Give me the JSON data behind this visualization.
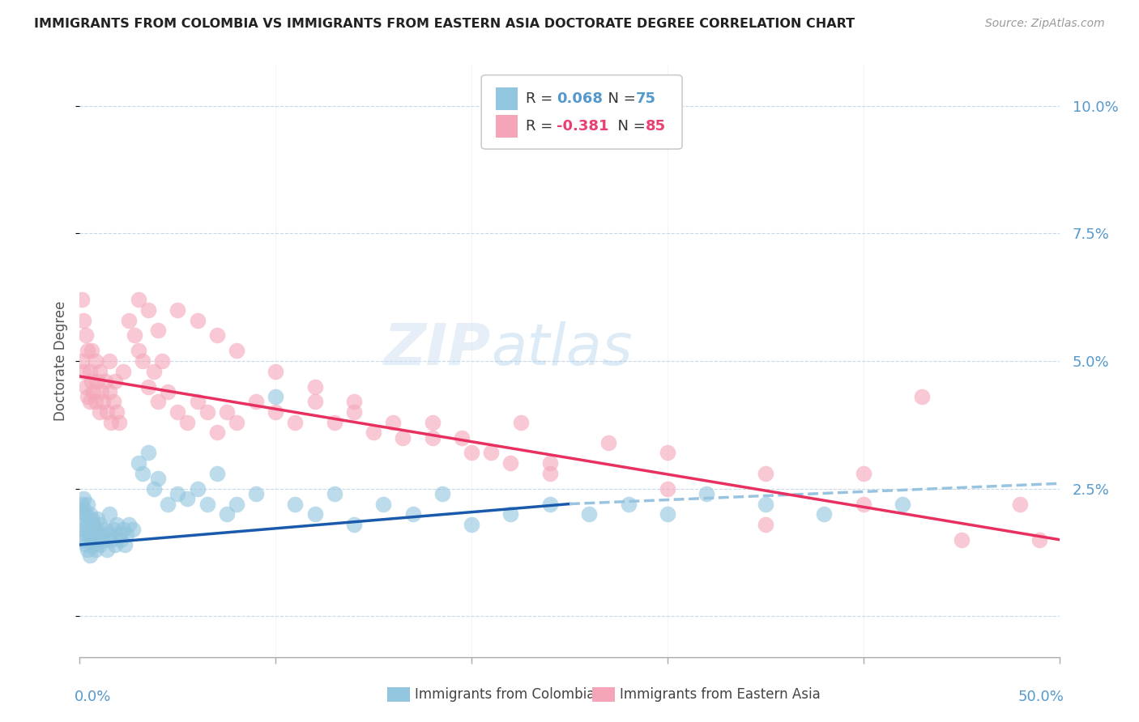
{
  "title": "IMMIGRANTS FROM COLOMBIA VS IMMIGRANTS FROM EASTERN ASIA DOCTORATE DEGREE CORRELATION CHART",
  "source": "Source: ZipAtlas.com",
  "ylabel": "Doctorate Degree",
  "yticks": [
    0.0,
    0.025,
    0.05,
    0.075,
    0.1
  ],
  "ytick_labels": [
    "",
    "2.5%",
    "5.0%",
    "7.5%",
    "10.0%"
  ],
  "xlim": [
    0.0,
    0.5
  ],
  "ylim": [
    -0.008,
    0.108
  ],
  "color_blue": "#92c5de",
  "color_pink": "#f4a6b8",
  "color_blue_text": "#5599cc",
  "color_pink_text": "#e84070",
  "color_trendline_blue": "#1a5aaa",
  "color_trendline_pink": "#e83060",
  "color_trendline_dashed": "#99c4e0",
  "colombia_x": [
    0.001,
    0.001,
    0.001,
    0.002,
    0.002,
    0.002,
    0.002,
    0.003,
    0.003,
    0.003,
    0.004,
    0.004,
    0.004,
    0.005,
    0.005,
    0.005,
    0.006,
    0.006,
    0.007,
    0.007,
    0.008,
    0.008,
    0.009,
    0.009,
    0.01,
    0.01,
    0.011,
    0.012,
    0.013,
    0.014,
    0.015,
    0.015,
    0.016,
    0.017,
    0.018,
    0.019,
    0.02,
    0.021,
    0.022,
    0.023,
    0.024,
    0.025,
    0.027,
    0.03,
    0.032,
    0.035,
    0.038,
    0.04,
    0.045,
    0.05,
    0.055,
    0.06,
    0.065,
    0.07,
    0.075,
    0.08,
    0.09,
    0.1,
    0.11,
    0.12,
    0.13,
    0.14,
    0.155,
    0.17,
    0.185,
    0.2,
    0.22,
    0.24,
    0.26,
    0.28,
    0.3,
    0.32,
    0.35,
    0.38,
    0.42
  ],
  "colombia_y": [
    0.018,
    0.02,
    0.022,
    0.015,
    0.017,
    0.021,
    0.023,
    0.014,
    0.016,
    0.02,
    0.013,
    0.018,
    0.022,
    0.012,
    0.016,
    0.02,
    0.015,
    0.019,
    0.014,
    0.018,
    0.013,
    0.017,
    0.015,
    0.019,
    0.014,
    0.018,
    0.016,
    0.015,
    0.017,
    0.013,
    0.016,
    0.02,
    0.015,
    0.017,
    0.014,
    0.018,
    0.016,
    0.015,
    0.017,
    0.014,
    0.016,
    0.018,
    0.017,
    0.03,
    0.028,
    0.032,
    0.025,
    0.027,
    0.022,
    0.024,
    0.023,
    0.025,
    0.022,
    0.028,
    0.02,
    0.022,
    0.024,
    0.043,
    0.022,
    0.02,
    0.024,
    0.018,
    0.022,
    0.02,
    0.024,
    0.018,
    0.02,
    0.022,
    0.02,
    0.022,
    0.02,
    0.024,
    0.022,
    0.02,
    0.022
  ],
  "eastern_asia_x": [
    0.001,
    0.001,
    0.002,
    0.002,
    0.003,
    0.003,
    0.004,
    0.004,
    0.005,
    0.005,
    0.006,
    0.006,
    0.007,
    0.008,
    0.008,
    0.009,
    0.01,
    0.01,
    0.011,
    0.012,
    0.013,
    0.014,
    0.015,
    0.015,
    0.016,
    0.017,
    0.018,
    0.019,
    0.02,
    0.022,
    0.025,
    0.028,
    0.03,
    0.032,
    0.035,
    0.038,
    0.04,
    0.042,
    0.045,
    0.05,
    0.055,
    0.06,
    0.065,
    0.07,
    0.075,
    0.08,
    0.09,
    0.1,
    0.11,
    0.12,
    0.13,
    0.14,
    0.15,
    0.165,
    0.18,
    0.195,
    0.21,
    0.225,
    0.24,
    0.27,
    0.03,
    0.035,
    0.04,
    0.05,
    0.06,
    0.07,
    0.08,
    0.1,
    0.12,
    0.14,
    0.16,
    0.18,
    0.2,
    0.22,
    0.24,
    0.3,
    0.35,
    0.4,
    0.43,
    0.48,
    0.3,
    0.35,
    0.4,
    0.45,
    0.49
  ],
  "eastern_asia_y": [
    0.05,
    0.062,
    0.048,
    0.058,
    0.045,
    0.055,
    0.043,
    0.052,
    0.042,
    0.048,
    0.046,
    0.052,
    0.044,
    0.042,
    0.05,
    0.046,
    0.04,
    0.048,
    0.044,
    0.042,
    0.046,
    0.04,
    0.044,
    0.05,
    0.038,
    0.042,
    0.046,
    0.04,
    0.038,
    0.048,
    0.058,
    0.055,
    0.052,
    0.05,
    0.045,
    0.048,
    0.042,
    0.05,
    0.044,
    0.04,
    0.038,
    0.042,
    0.04,
    0.036,
    0.04,
    0.038,
    0.042,
    0.04,
    0.038,
    0.042,
    0.038,
    0.04,
    0.036,
    0.035,
    0.038,
    0.035,
    0.032,
    0.038,
    0.03,
    0.034,
    0.062,
    0.06,
    0.056,
    0.06,
    0.058,
    0.055,
    0.052,
    0.048,
    0.045,
    0.042,
    0.038,
    0.035,
    0.032,
    0.03,
    0.028,
    0.032,
    0.028,
    0.022,
    0.043,
    0.022,
    0.025,
    0.018,
    0.028,
    0.015,
    0.015
  ],
  "trendline_blue_x0": 0.0,
  "trendline_blue_y0": 0.014,
  "trendline_blue_x1": 0.25,
  "trendline_blue_y1": 0.022,
  "trendline_blue_dash_x0": 0.25,
  "trendline_blue_dash_y0": 0.022,
  "trendline_blue_dash_x1": 0.5,
  "trendline_blue_dash_y1": 0.026,
  "trendline_pink_x0": 0.0,
  "trendline_pink_y0": 0.047,
  "trendline_pink_x1": 0.5,
  "trendline_pink_y1": 0.015
}
